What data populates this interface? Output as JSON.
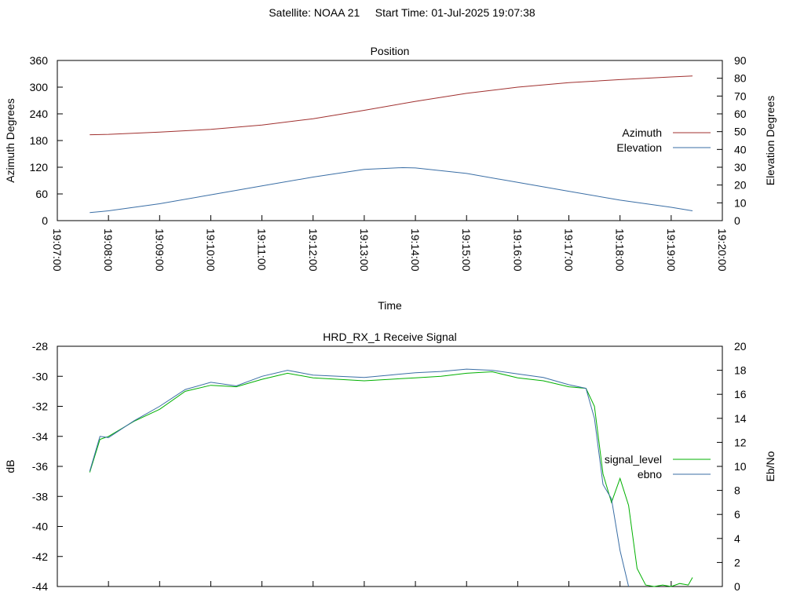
{
  "page": {
    "title": "Satellite: NOAA 21     Start Time: 01-Jul-2025 19:07:38"
  },
  "chart_data": [
    {
      "type": "line",
      "title": "Position",
      "xlabel": "Time",
      "ylabel": "Azimuth Degrees",
      "y2label": "Elevation Degrees",
      "xlim": [
        "19:07:00",
        "19:20:00"
      ],
      "x_ticks": [
        "19:07:00",
        "19:08:00",
        "19:09:00",
        "19:10:00",
        "19:11:00",
        "19:12:00",
        "19:13:00",
        "19:14:00",
        "19:15:00",
        "19:16:00",
        "19:17:00",
        "19:18:00",
        "19:19:00",
        "19:20:00"
      ],
      "ylim": [
        0,
        360
      ],
      "y_ticks": [
        0,
        60,
        120,
        180,
        240,
        300,
        360
      ],
      "y2lim": [
        0,
        90
      ],
      "y2_ticks": [
        0,
        10,
        20,
        30,
        40,
        50,
        60,
        70,
        80,
        90
      ],
      "legend_position": "right",
      "grid": false,
      "series": [
        {
          "name": "Azimuth",
          "axis": "y",
          "color": "#a0302f",
          "x": [
            "19:07:38",
            "19:08:00",
            "19:09:00",
            "19:10:00",
            "19:11:00",
            "19:12:00",
            "19:13:00",
            "19:14:00",
            "19:15:00",
            "19:16:00",
            "19:17:00",
            "19:18:00",
            "19:19:00",
            "19:19:25"
          ],
          "values": [
            193,
            194,
            199,
            205,
            215,
            229,
            248,
            268,
            286,
            300,
            310,
            317,
            323,
            325
          ]
        },
        {
          "name": "Elevation",
          "axis": "y2",
          "color": "#3a6ea5",
          "x": [
            "19:07:38",
            "19:08:00",
            "19:09:00",
            "19:10:00",
            "19:11:00",
            "19:12:00",
            "19:13:00",
            "19:13:45",
            "19:14:00",
            "19:15:00",
            "19:16:00",
            "19:17:00",
            "19:18:00",
            "19:19:00",
            "19:19:25"
          ],
          "values": [
            4.5,
            5.5,
            9.5,
            14.5,
            19.5,
            24.5,
            28.8,
            29.8,
            29.6,
            26.5,
            21.5,
            16.5,
            11.5,
            7.5,
            5.5
          ]
        }
      ]
    },
    {
      "type": "line",
      "title": "HRD_RX_1 Receive Signal",
      "ylabel": "dB",
      "y2label": "Eb/No",
      "ylim": [
        -44,
        -28
      ],
      "y_ticks": [
        -44,
        -42,
        -40,
        -38,
        -36,
        -34,
        -32,
        -30,
        -28
      ],
      "y2lim": [
        0,
        20
      ],
      "y2_ticks": [
        0,
        2,
        4,
        6,
        8,
        10,
        12,
        14,
        16,
        18,
        20
      ],
      "xlim": [
        "19:07:00",
        "19:20:00"
      ],
      "legend_position": "right",
      "grid": false,
      "series": [
        {
          "name": "signal_level",
          "axis": "y",
          "color": "#00b000",
          "x": [
            "19:07:38",
            "19:07:50",
            "19:08:00",
            "19:08:30",
            "19:09:00",
            "19:09:30",
            "19:10:00",
            "19:10:30",
            "19:11:00",
            "19:11:30",
            "19:12:00",
            "19:12:30",
            "19:13:00",
            "19:13:30",
            "19:14:00",
            "19:14:30",
            "19:15:00",
            "19:15:30",
            "19:16:00",
            "19:16:30",
            "19:17:00",
            "19:17:20",
            "19:17:30",
            "19:17:40",
            "19:17:50",
            "19:18:00",
            "19:18:10",
            "19:18:20",
            "19:18:30",
            "19:18:40",
            "19:18:50",
            "19:19:00",
            "19:19:10",
            "19:19:20",
            "19:19:25"
          ],
          "values": [
            -36.4,
            -34.2,
            -34.0,
            -33.0,
            -32.2,
            -31.0,
            -30.6,
            -30.7,
            -30.2,
            -29.8,
            -30.1,
            -30.2,
            -30.3,
            -30.2,
            -30.1,
            -30.0,
            -29.8,
            -29.7,
            -30.1,
            -30.3,
            -30.7,
            -30.8,
            -32.0,
            -36.5,
            -38.4,
            -36.8,
            -38.6,
            -42.8,
            -43.9,
            -44.0,
            -43.9,
            -44.0,
            -43.8,
            -43.9,
            -43.4
          ]
        },
        {
          "name": "ebno",
          "axis": "y2",
          "color": "#3a6ea5",
          "x": [
            "19:07:38",
            "19:07:50",
            "19:08:00",
            "19:08:30",
            "19:09:00",
            "19:09:30",
            "19:10:00",
            "19:10:30",
            "19:11:00",
            "19:11:30",
            "19:12:00",
            "19:12:30",
            "19:13:00",
            "19:13:30",
            "19:14:00",
            "19:14:30",
            "19:15:00",
            "19:15:30",
            "19:16:00",
            "19:16:30",
            "19:17:00",
            "19:17:20",
            "19:17:30",
            "19:17:40",
            "19:17:50",
            "19:18:00",
            "19:18:10"
          ],
          "values": [
            9.6,
            12.5,
            12.4,
            13.8,
            15.0,
            16.4,
            17.0,
            16.7,
            17.5,
            18.0,
            17.6,
            17.5,
            17.4,
            17.6,
            17.8,
            17.9,
            18.1,
            18.0,
            17.7,
            17.4,
            16.8,
            16.5,
            14.0,
            8.5,
            7.3,
            3.0,
            0
          ]
        }
      ]
    }
  ]
}
